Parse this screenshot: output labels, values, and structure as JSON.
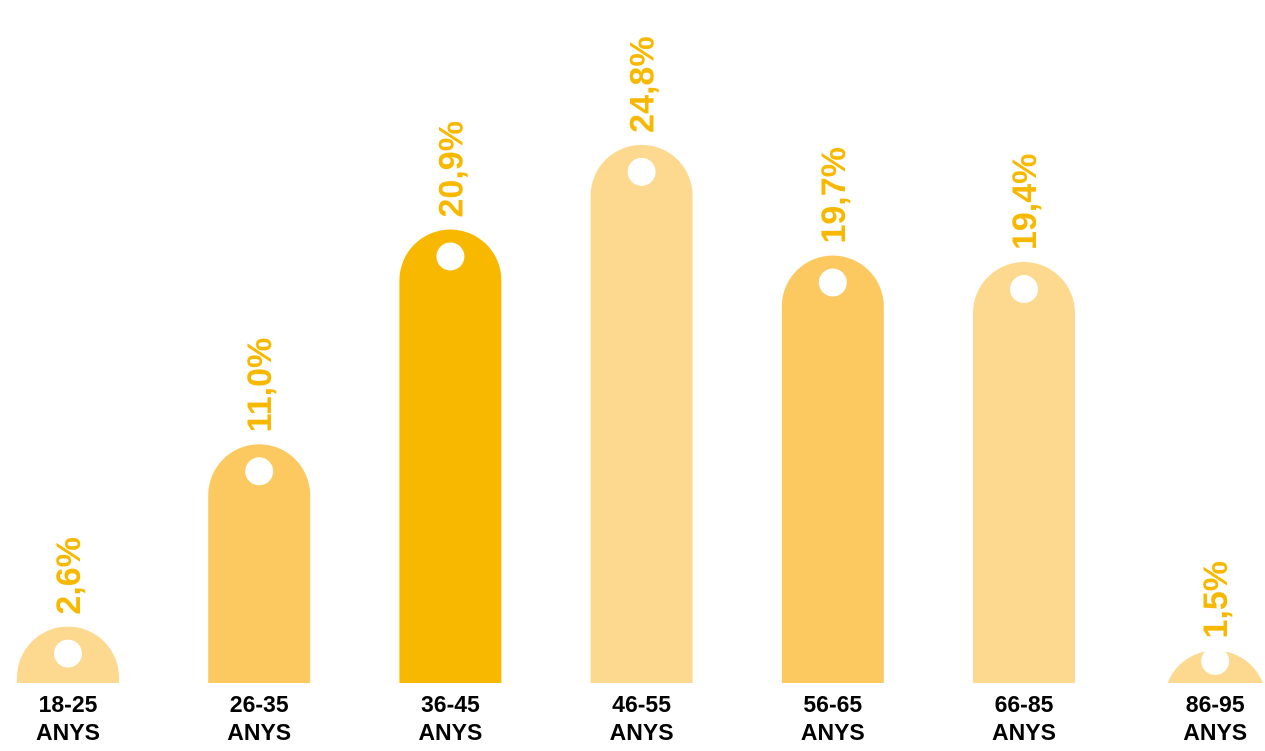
{
  "chart_data": {
    "type": "bar",
    "categories": [
      [
        "18-25",
        "ANYS"
      ],
      [
        "26-35",
        "ANYS"
      ],
      [
        "36-45",
        "ANYS"
      ],
      [
        "46-55",
        "ANYS"
      ],
      [
        "56-65",
        "ANYS"
      ],
      [
        "66-85",
        "ANYS"
      ],
      [
        "86-95",
        "ANYS"
      ]
    ],
    "values": [
      2.6,
      11.0,
      20.9,
      24.8,
      19.7,
      19.4,
      1.5
    ],
    "value_labels": [
      "2,6%",
      "11,0%",
      "20,9%",
      "24,8%",
      "19,7%",
      "19,4%",
      "1,5%"
    ],
    "bar_colors": [
      "#fdd88f",
      "#fcc961",
      "#f9b800",
      "#fdd88f",
      "#fcc961",
      "#fdd88f",
      "#fdd88f"
    ],
    "label_color": "#f9b800",
    "tick_label_color": "#000000",
    "title": "",
    "xlabel": "",
    "ylabel": "",
    "grid": false,
    "legend": "none"
  }
}
